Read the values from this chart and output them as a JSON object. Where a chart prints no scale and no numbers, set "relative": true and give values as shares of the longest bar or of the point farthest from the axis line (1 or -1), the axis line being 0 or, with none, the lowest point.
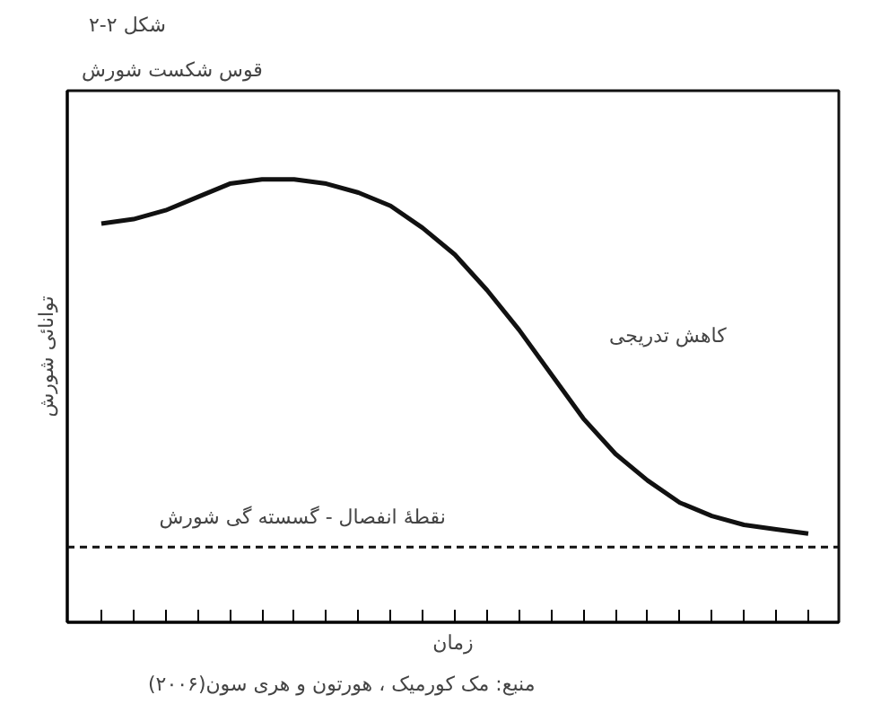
{
  "chart_data": {
    "type": "line",
    "title": "شکل ۲-۲",
    "subtitle": "قوس شکست شورش",
    "xlabel": "زمان",
    "ylabel": "توانائی شورش",
    "relative": true,
    "grid": false,
    "categories": [
      null,
      null,
      null,
      null,
      null,
      null,
      null,
      null,
      null,
      null,
      null,
      null,
      null,
      null,
      null,
      null,
      null,
      null,
      null,
      null,
      null,
      null,
      null
    ],
    "series": [
      {
        "color": "#111111",
        "values": [
          0.9,
          0.91,
          0.93,
          0.96,
          0.99,
          1.0,
          1.0,
          0.99,
          0.97,
          0.94,
          0.89,
          0.83,
          0.75,
          0.66,
          0.56,
          0.46,
          0.38,
          0.32,
          0.27,
          0.24,
          0.22,
          0.21,
          0.2
        ]
      }
    ],
    "ref_lines": [
      {
        "axis": "y",
        "value": 0.17,
        "label": "نقطهٔ انفصال - گسسته گی شورش",
        "line_style": "dashed"
      }
    ],
    "annotations": [
      "کاهش تدریجی",
      "منبع: مک کورمیک ، هورتون و هری سون(۲۰۰۶)"
    ]
  }
}
